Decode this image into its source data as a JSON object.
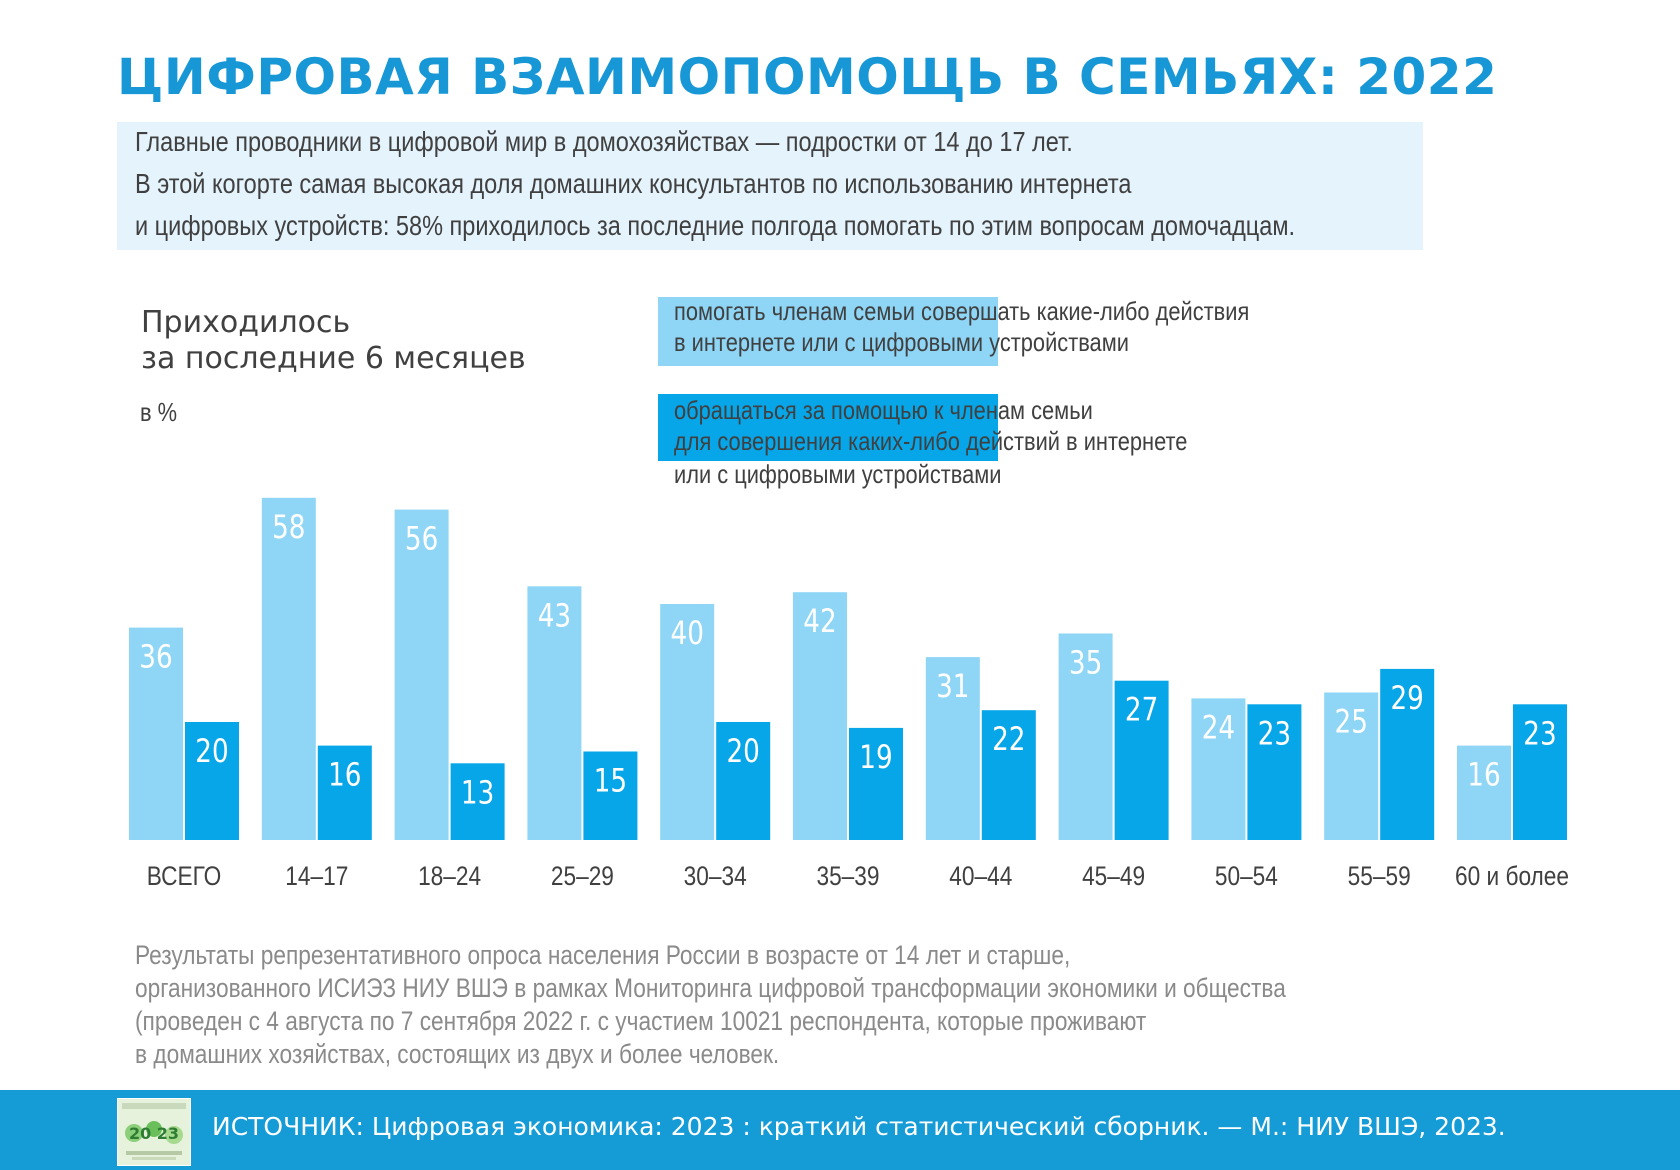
{
  "header": {
    "title": "ЦИФРОВАЯ ВЗАИМОПОМОЩЬ В СЕМЬЯХ: 2022",
    "lead": [
      "Главные проводники в цифровой мир в домохозяйствах — подростки от 14 до 17 лет.",
      "В этой когорте самая высокая доля домашних консультантов по использованию интернета",
      "и цифровых устройств: 58% приходилось за последние полгода помогать по этим вопросам домочадцам."
    ]
  },
  "chart_data": {
    "type": "bar",
    "title": "Приходилось за последние 6 месяцев",
    "title_lines": [
      "Приходилось",
      "за последние 6 месяцев"
    ],
    "unit_label": "в %",
    "categories": [
      "ВСЕГО",
      "14–17",
      "18–24",
      "25–29",
      "30–34",
      "35–39",
      "40–44",
      "45–49",
      "50–54",
      "55–59",
      "60 и более"
    ],
    "series": [
      {
        "name": "помогать членам семьи совершать какие-либо действия в интернете или с цифровыми устройствами",
        "legend_lines": [
          "помогать членам семьи совершать какие-либо действия",
          "в интернете или с цифровыми устройствами"
        ],
        "color": "#8fd6f6",
        "values": [
          36,
          58,
          56,
          43,
          40,
          42,
          31,
          35,
          24,
          25,
          16
        ]
      },
      {
        "name": "обращаться за помощью к членам семьи для совершения каких-либо действий в интернете или с цифровыми устройствами",
        "legend_lines": [
          "обращаться за помощью к членам семьи",
          "для совершения каких-либо действий в интернете",
          "или с цифровыми устройствами"
        ],
        "color": "#06a6e8",
        "values": [
          20,
          16,
          13,
          15,
          20,
          19,
          22,
          27,
          23,
          29,
          23
        ]
      }
    ],
    "ylim": [
      0,
      60
    ],
    "grid": false,
    "data_labels": true,
    "legend_position": "top"
  },
  "footnote": [
    "Результаты репрезентативного опроса населения России в возрасте от 14 лет и старше,",
    "организованного ИСИЭЗ НИУ ВШЭ в рамках Мониторинга цифровой трансформации экономики и общества",
    "(проведен с 4 августа по 7 сентября 2022 г. с участием 10021 респондента, которые проживают",
    "в домашних хозяйствах, состоящих из двух и более человек."
  ],
  "source": {
    "text": "ИСТОЧНИК: Цифровая экономика: 2023 : краткий статистический сборник. — М.: НИУ ВШЭ, 2023.",
    "book_cover_text": "20 23"
  }
}
